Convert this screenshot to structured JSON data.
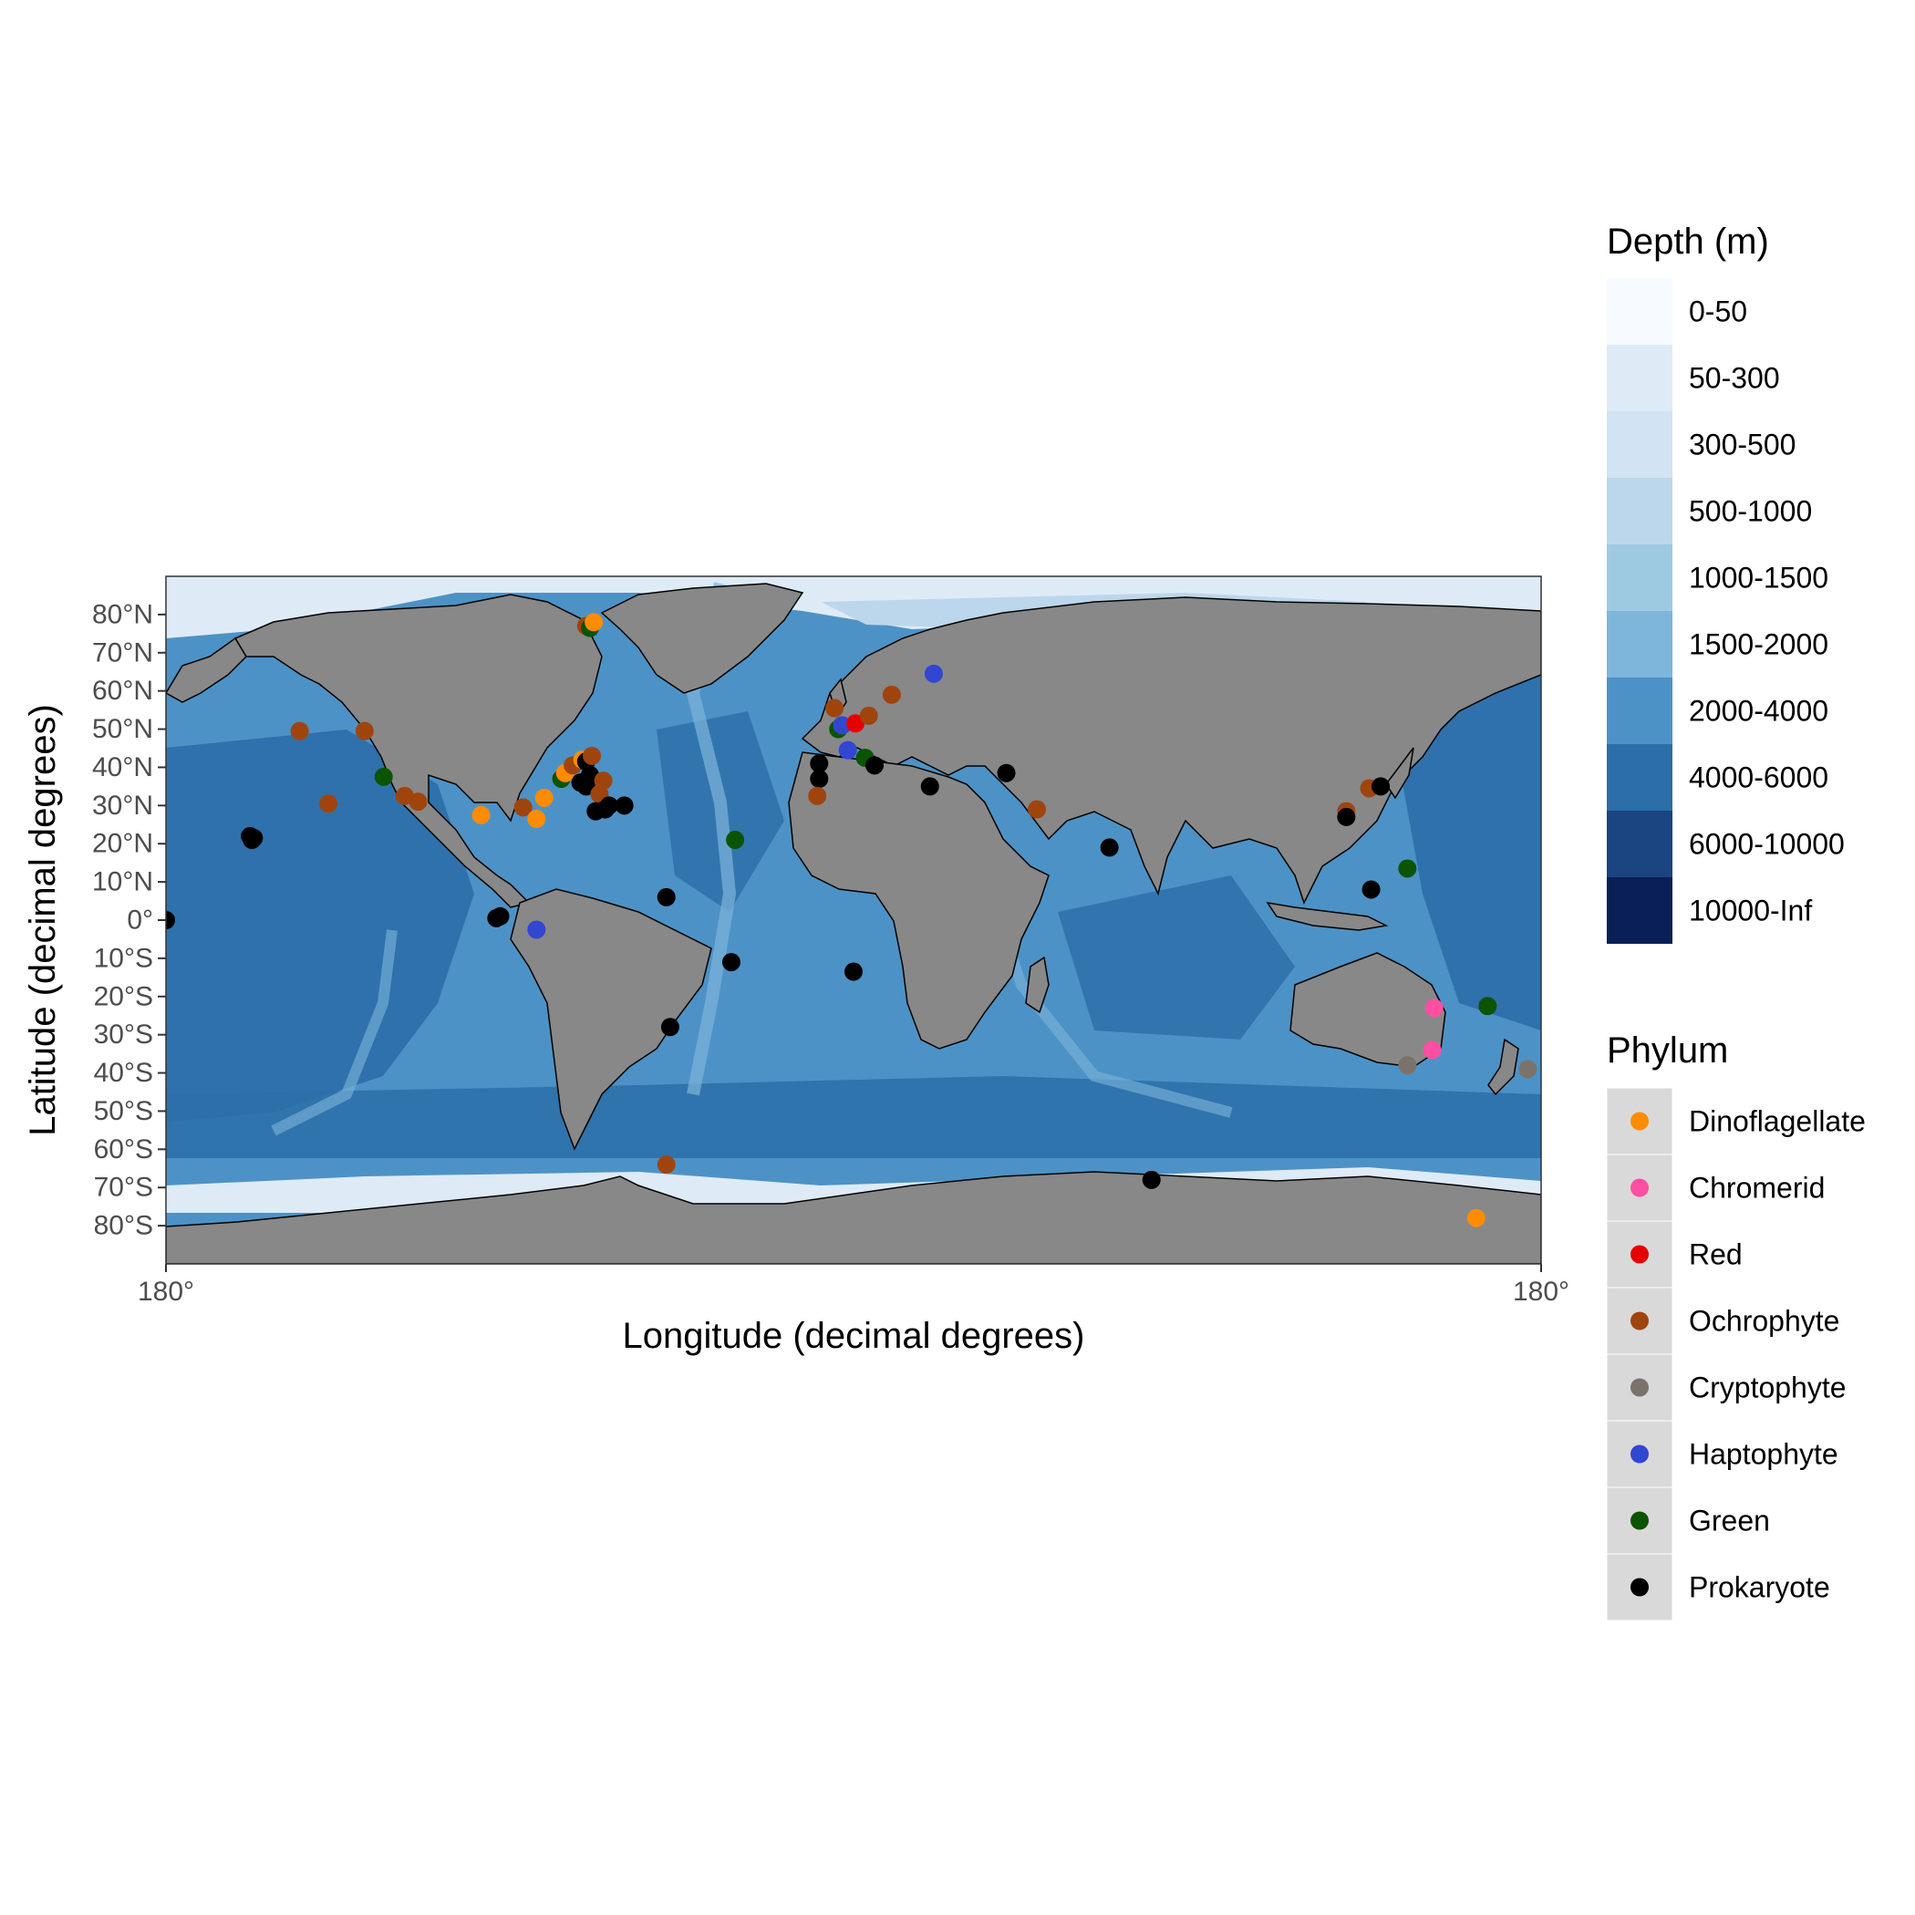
{
  "chart_data": {
    "type": "map",
    "projection": "equirectangular",
    "xlabel": "Longitude (decimal degrees)",
    "ylabel": "Latitude (decimal degrees)",
    "xlim": [
      -180,
      180
    ],
    "ylim": [
      -90,
      90
    ],
    "x_ticks": [
      {
        "value": -180,
        "label": "180°"
      },
      {
        "value": 180,
        "label": "180°"
      }
    ],
    "y_ticks": [
      {
        "value": 80,
        "label": "80°N"
      },
      {
        "value": 70,
        "label": "70°N"
      },
      {
        "value": 60,
        "label": "60°N"
      },
      {
        "value": 50,
        "label": "50°N"
      },
      {
        "value": 40,
        "label": "40°N"
      },
      {
        "value": 30,
        "label": "30°N"
      },
      {
        "value": 20,
        "label": "20°N"
      },
      {
        "value": 10,
        "label": "10°N"
      },
      {
        "value": 0,
        "label": "0°"
      },
      {
        "value": -10,
        "label": "10°S"
      },
      {
        "value": -20,
        "label": "20°S"
      },
      {
        "value": -30,
        "label": "30°S"
      },
      {
        "value": -40,
        "label": "40°S"
      },
      {
        "value": -50,
        "label": "50°S"
      },
      {
        "value": -60,
        "label": "60°S"
      },
      {
        "value": -70,
        "label": "70°S"
      },
      {
        "value": -80,
        "label": "80°S"
      }
    ],
    "depth_legend": {
      "title": "Depth (m)",
      "classes": [
        {
          "label": "0-50",
          "color": "#f7fbff"
        },
        {
          "label": "50-300",
          "color": "#deebf7"
        },
        {
          "label": "300-500",
          "color": "#d2e3f3"
        },
        {
          "label": "500-1000",
          "color": "#bcd7eb"
        },
        {
          "label": "1000-1500",
          "color": "#9ecae1"
        },
        {
          "label": "1500-2000",
          "color": "#7db5db"
        },
        {
          "label": "2000-4000",
          "color": "#4d92c6"
        },
        {
          "label": "4000-6000",
          "color": "#2c6ea8"
        },
        {
          "label": "6000-10000",
          "color": "#1a4580"
        },
        {
          "label": "10000-Inf",
          "color": "#0a1f56"
        }
      ]
    },
    "phylum_legend": {
      "title": "Phylum",
      "key_background": "#d9d9d9",
      "entries": [
        {
          "label": "Dinoflagellate",
          "color": "#ff8c00"
        },
        {
          "label": "Chromerid",
          "color": "#ff4fa3"
        },
        {
          "label": "Red",
          "color": "#e60000"
        },
        {
          "label": "Ochrophyte",
          "color": "#a0440e"
        },
        {
          "label": "Cryptophyte",
          "color": "#7a736b"
        },
        {
          "label": "Haptophyte",
          "color": "#3246d2"
        },
        {
          "label": "Green",
          "color": "#0b5400"
        },
        {
          "label": "Prokaryote",
          "color": "#000000"
        }
      ]
    },
    "land_color": "#888888",
    "ocean_color": "#4d92c6",
    "points": [
      {
        "lon": -70,
        "lat": 77,
        "phylum": "Ochrophyte"
      },
      {
        "lon": -69,
        "lat": 76.5,
        "phylum": "Green"
      },
      {
        "lon": -68,
        "lat": 78,
        "phylum": "Dinoflagellate"
      },
      {
        "lon": -145,
        "lat": 49.5,
        "phylum": "Ochrophyte"
      },
      {
        "lon": -128,
        "lat": 49.5,
        "phylum": "Ochrophyte"
      },
      {
        "lon": -123,
        "lat": 37.5,
        "phylum": "Green"
      },
      {
        "lon": -117.5,
        "lat": 32.5,
        "phylum": "Ochrophyte"
      },
      {
        "lon": -114,
        "lat": 31,
        "phylum": "Ochrophyte"
      },
      {
        "lon": -137.5,
        "lat": 30.5,
        "phylum": "Ochrophyte"
      },
      {
        "lon": -158,
        "lat": 22,
        "phylum": "Prokaryote"
      },
      {
        "lon": -157.5,
        "lat": 21,
        "phylum": "Prokaryote"
      },
      {
        "lon": -157,
        "lat": 21.5,
        "phylum": "Prokaryote"
      },
      {
        "lon": -97.5,
        "lat": 27.5,
        "phylum": "Dinoflagellate"
      },
      {
        "lon": -86.5,
        "lat": 29.5,
        "phylum": "Ochrophyte"
      },
      {
        "lon": -83,
        "lat": 26.5,
        "phylum": "Dinoflagellate"
      },
      {
        "lon": -81,
        "lat": 32,
        "phylum": "Dinoflagellate"
      },
      {
        "lon": -76.5,
        "lat": 37,
        "phylum": "Green"
      },
      {
        "lon": -75.5,
        "lat": 38.5,
        "phylum": "Dinoflagellate"
      },
      {
        "lon": -73.5,
        "lat": 40.5,
        "phylum": "Ochrophyte"
      },
      {
        "lon": -71,
        "lat": 42,
        "phylum": "Dinoflagellate"
      },
      {
        "lon": -70,
        "lat": 41.5,
        "phylum": "Prokaryote"
      },
      {
        "lon": -68.5,
        "lat": 43,
        "phylum": "Ochrophyte"
      },
      {
        "lon": -71.5,
        "lat": 36,
        "phylum": "Prokaryote"
      },
      {
        "lon": -70,
        "lat": 35,
        "phylum": "Prokaryote"
      },
      {
        "lon": -69,
        "lat": 38,
        "phylum": "Prokaryote"
      },
      {
        "lon": -66.5,
        "lat": 33,
        "phylum": "Ochrophyte"
      },
      {
        "lon": -65.5,
        "lat": 36.5,
        "phylum": "Ochrophyte"
      },
      {
        "lon": -67.5,
        "lat": 28.5,
        "phylum": "Prokaryote"
      },
      {
        "lon": -65,
        "lat": 29,
        "phylum": "Prokaryote"
      },
      {
        "lon": -64,
        "lat": 30,
        "phylum": "Prokaryote"
      },
      {
        "lon": -60,
        "lat": 30,
        "phylum": "Prokaryote"
      },
      {
        "lon": -93.5,
        "lat": 0.5,
        "phylum": "Prokaryote"
      },
      {
        "lon": -92.5,
        "lat": 1,
        "phylum": "Prokaryote"
      },
      {
        "lon": -83,
        "lat": -2.5,
        "phylum": "Haptophyte"
      },
      {
        "lon": -49,
        "lat": 6,
        "phylum": "Prokaryote"
      },
      {
        "lon": -32,
        "lat": -11,
        "phylum": "Prokaryote"
      },
      {
        "lon": -48,
        "lat": -28,
        "phylum": "Prokaryote"
      },
      {
        "lon": -49,
        "lat": -64,
        "phylum": "Ochrophyte"
      },
      {
        "lon": -31,
        "lat": 21,
        "phylum": "Green"
      },
      {
        "lon": -180,
        "lat": 0,
        "phylum": "Prokaryote"
      },
      {
        "lon": -5,
        "lat": 55.5,
        "phylum": "Ochrophyte"
      },
      {
        "lon": -4,
        "lat": 50,
        "phylum": "Green"
      },
      {
        "lon": -3,
        "lat": 51,
        "phylum": "Haptophyte"
      },
      {
        "lon": 0.5,
        "lat": 51.5,
        "phylum": "Red"
      },
      {
        "lon": 4,
        "lat": 53.5,
        "phylum": "Ochrophyte"
      },
      {
        "lon": 10,
        "lat": 59,
        "phylum": "Ochrophyte"
      },
      {
        "lon": 21,
        "lat": 64.5,
        "phylum": "Haptophyte"
      },
      {
        "lon": -1.5,
        "lat": 44.5,
        "phylum": "Haptophyte"
      },
      {
        "lon": 3,
        "lat": 42.5,
        "phylum": "Green"
      },
      {
        "lon": -9,
        "lat": 41,
        "phylum": "Prokaryote"
      },
      {
        "lon": -9,
        "lat": 37,
        "phylum": "Prokaryote"
      },
      {
        "lon": -9.5,
        "lat": 32.5,
        "phylum": "Ochrophyte"
      },
      {
        "lon": 5.5,
        "lat": 40.5,
        "phylum": "Prokaryote"
      },
      {
        "lon": 20,
        "lat": 35,
        "phylum": "Prokaryote"
      },
      {
        "lon": 40,
        "lat": 38.5,
        "phylum": "Prokaryote"
      },
      {
        "lon": 48,
        "lat": 29,
        "phylum": "Ochrophyte"
      },
      {
        "lon": 0,
        "lat": -13.5,
        "phylum": "Prokaryote"
      },
      {
        "lon": 67,
        "lat": 19,
        "phylum": "Prokaryote"
      },
      {
        "lon": 78,
        "lat": -68,
        "phylum": "Prokaryote"
      },
      {
        "lon": 129,
        "lat": 28.5,
        "phylum": "Ochrophyte"
      },
      {
        "lon": 129,
        "lat": 27,
        "phylum": "Prokaryote"
      },
      {
        "lon": 135,
        "lat": 34.5,
        "phylum": "Ochrophyte"
      },
      {
        "lon": 138,
        "lat": 35,
        "phylum": "Prokaryote"
      },
      {
        "lon": 135.5,
        "lat": 8,
        "phylum": "Prokaryote"
      },
      {
        "lon": 145,
        "lat": 13.5,
        "phylum": "Green"
      },
      {
        "lon": 152,
        "lat": -23,
        "phylum": "Chromerid"
      },
      {
        "lon": 151.5,
        "lat": -34,
        "phylum": "Chromerid"
      },
      {
        "lon": 145,
        "lat": -38,
        "phylum": "Cryptophyte"
      },
      {
        "lon": 166,
        "lat": -22.5,
        "phylum": "Green"
      },
      {
        "lon": 176.5,
        "lat": -39,
        "phylum": "Cryptophyte"
      },
      {
        "lon": 163,
        "lat": -78,
        "phylum": "Dinoflagellate"
      }
    ]
  }
}
